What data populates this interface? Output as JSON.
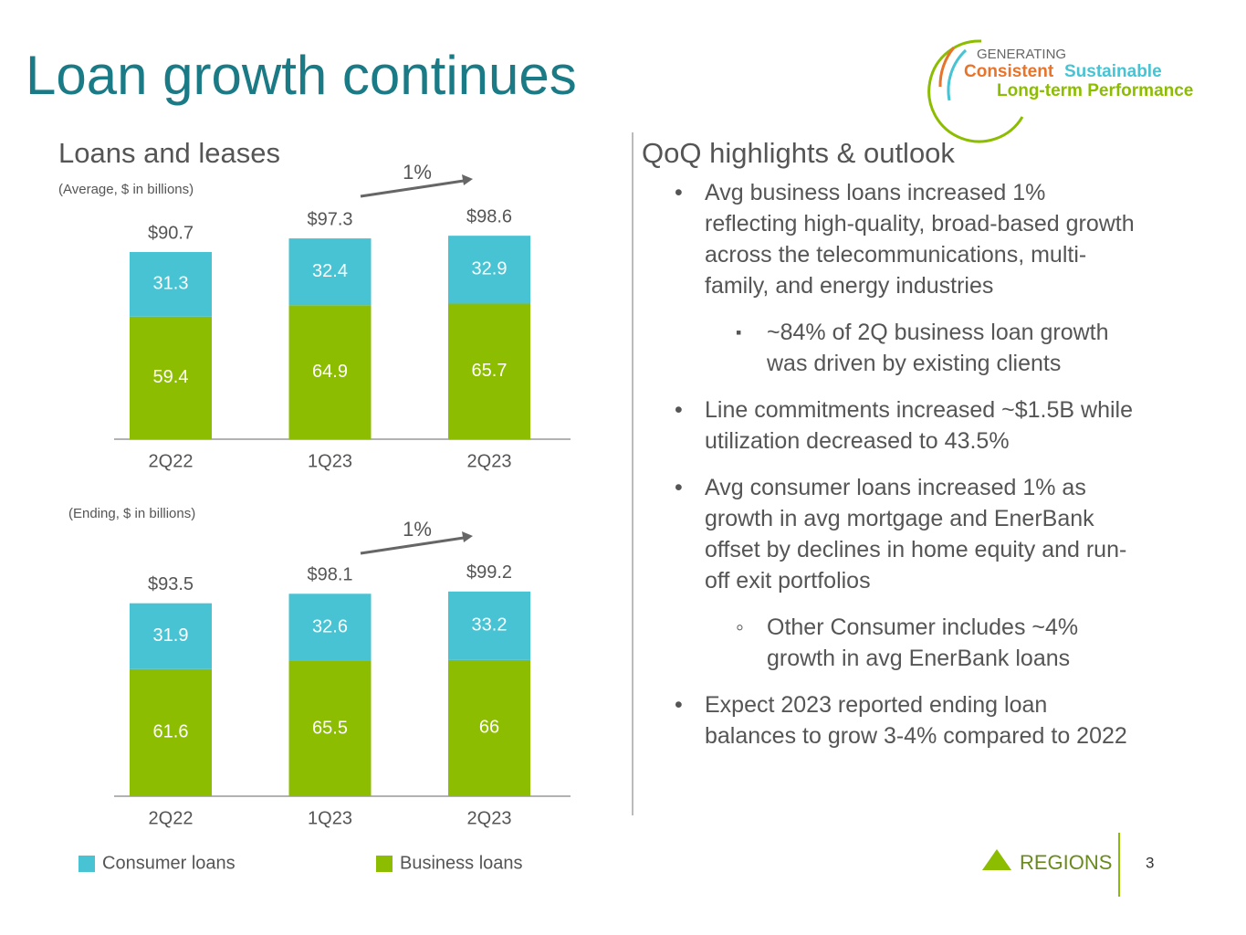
{
  "title": "Loan growth continues",
  "logo": {
    "line1": "GENERATING",
    "word1": "Consistent",
    "word2": "Sustainable",
    "line3": "Long-term Performance"
  },
  "chart_data": [
    {
      "type": "stacked_bar",
      "subtitle": "Loans and leases",
      "note": "(Average, $ in billions)",
      "categories": [
        "2Q22",
        "1Q23",
        "2Q23"
      ],
      "series": [
        {
          "name": "Consumer loans",
          "color": "#47c3d3",
          "values": [
            31.3,
            32.4,
            32.9
          ]
        },
        {
          "name": "Business loans",
          "color": "#8cbd00",
          "values": [
            59.4,
            64.9,
            65.7
          ]
        }
      ],
      "totals": {
        "values": [
          90.7,
          97.3,
          98.6
        ],
        "value_labels": [
          "$90.7",
          "$97.3",
          "$98.6"
        ]
      },
      "growth_label": "1%"
    },
    {
      "type": "stacked_bar",
      "note": "(Ending, $ in billions)",
      "categories": [
        "2Q22",
        "1Q23",
        "2Q23"
      ],
      "series": [
        {
          "color": "#47c3d3",
          "values": [
            31.9,
            32.6,
            33.2
          ]
        },
        {
          "color": "#8cbd00",
          "values": [
            61.6,
            65.5,
            66.0
          ]
        }
      ],
      "totals": {
        "values": [
          93.5,
          98.1,
          99.2
        ],
        "value_labels": [
          "$93.5",
          "$98.1",
          "$99.2"
        ]
      },
      "growth_label": "1%"
    }
  ],
  "highlights": {
    "heading": "QoQ highlights & outlook",
    "bullets": [
      {
        "text": "Avg business loans increased 1% reflecting high-quality, broad-based growth across the telecommunications, multi-family, and energy industries",
        "sub": [
          "~84% of 2Q business loan growth was driven by existing clients"
        ]
      },
      {
        "text": "Line commitments increased ~$1.5B while utilization decreased to 43.5%"
      },
      {
        "text": "Avg consumer loans increased 1% as growth in avg mortgage and EnerBank offset by declines in home equity and run-off exit portfolios",
        "sub": [
          "Other Consumer includes ~4% growth in avg EnerBank loans"
        ]
      },
      {
        "text": "Expect 2023 reported ending loan balances to grow 3-4% compared to 2022"
      }
    ]
  },
  "footer": {
    "brand": "REGIONS",
    "page": "3"
  }
}
